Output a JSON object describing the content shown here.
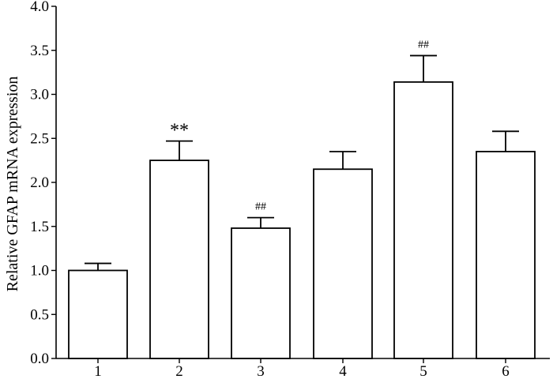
{
  "chart_data": {
    "type": "bar",
    "categories": [
      "1",
      "2",
      "3",
      "4",
      "5",
      "6"
    ],
    "values": [
      1.0,
      2.25,
      1.48,
      2.15,
      3.14,
      2.35
    ],
    "errors": [
      0.08,
      0.22,
      0.12,
      0.2,
      0.3,
      0.23
    ],
    "annotations": [
      "",
      "**",
      "##",
      "",
      "##",
      ""
    ],
    "title": "",
    "xlabel": "",
    "ylabel": "Relative GFAP mRNA expression",
    "ylim": [
      0,
      4.0
    ],
    "yticks": [
      0.0,
      0.5,
      1.0,
      1.5,
      2.0,
      2.5,
      3.0,
      3.5,
      4.0
    ],
    "ytick_labels": [
      "0.0",
      "0.5",
      "1.0",
      "1.5",
      "2.0",
      "2.5",
      "3.0",
      "3.5",
      "4.0"
    ],
    "grid": false,
    "bar_color": "#ffffff",
    "edge_color": "#000000"
  }
}
